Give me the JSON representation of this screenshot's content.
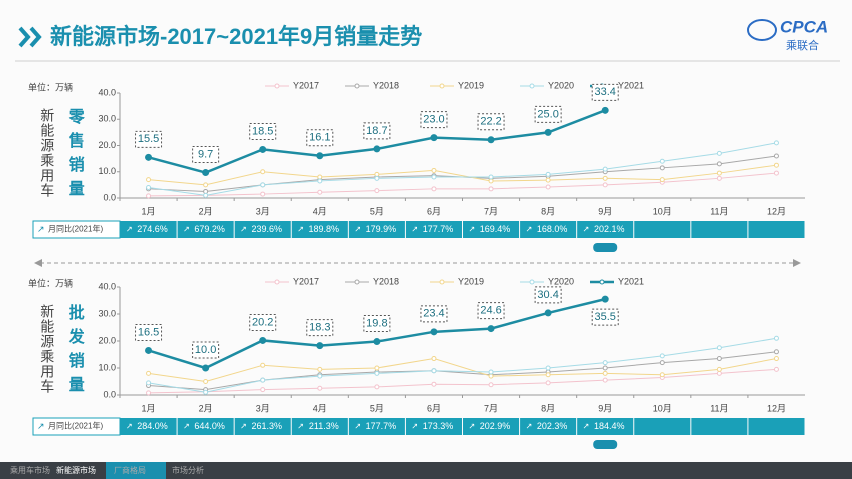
{
  "header": {
    "title": "新能源市场-2017~2021年9月销量走势",
    "logo": "CPCA",
    "logo_sub": "乘联合"
  },
  "footer": {
    "tabs": [
      "乘用车市场",
      "新能源市场",
      "厂商格局",
      "市场分析"
    ]
  },
  "chart_data": [
    {
      "type": "line",
      "unit": "单位：万辆",
      "side_title": "新能源乘用车",
      "subtitle": "零售销量",
      "categories": [
        "1月",
        "2月",
        "3月",
        "4月",
        "5月",
        "6月",
        "7月",
        "8月",
        "9月",
        "10月",
        "11月",
        "12月"
      ],
      "series": [
        {
          "name": "Y2017",
          "color": "#f3c3cd",
          "values": [
            0.8,
            1.0,
            1.5,
            2.2,
            2.8,
            3.5,
            3.5,
            4.2,
            5.0,
            6.0,
            7.5,
            9.5
          ]
        },
        {
          "name": "Y2018",
          "color": "#a8a8a8",
          "values": [
            3.5,
            2.5,
            5.0,
            7.0,
            8.0,
            8.5,
            7.5,
            8.3,
            10.0,
            11.5,
            13.0,
            16.0
          ]
        },
        {
          "name": "Y2019",
          "color": "#f2d68c",
          "values": [
            7.0,
            5.0,
            10.0,
            8.0,
            9.0,
            10.5,
            6.5,
            6.8,
            7.5,
            7.0,
            9.5,
            12.5
          ]
        },
        {
          "name": "Y2020",
          "color": "#a6dbe6",
          "values": [
            4.0,
            1.0,
            5.0,
            6.5,
            7.5,
            8.0,
            8.0,
            9.0,
            11.0,
            14.0,
            17.0,
            21.0
          ]
        },
        {
          "name": "Y2021",
          "color": "#1d8ca2",
          "values": [
            15.5,
            9.7,
            18.5,
            16.1,
            18.7,
            23.0,
            22.2,
            25.0,
            33.4,
            null,
            null,
            null
          ],
          "value_labels": [
            "15.5",
            "9.7",
            "18.5",
            "16.1",
            "18.7",
            "23.0",
            "22.2",
            "25.0",
            "33.4",
            null,
            null,
            null
          ]
        }
      ],
      "ylim": [
        0,
        40
      ],
      "yticks": [
        {
          "value": 0,
          "label": "0.0"
        },
        {
          "value": 10,
          "label": "10.0"
        },
        {
          "value": 20,
          "label": "20.0"
        },
        {
          "value": 30,
          "label": "30.0"
        },
        {
          "value": 40,
          "label": "40.0"
        }
      ],
      "yoy_label": "月同比(2021年)",
      "yoy": [
        "274.6%",
        "679.2%",
        "239.6%",
        "189.8%",
        "179.9%",
        "177.7%",
        "169.4%",
        "168.0%",
        "202.1%"
      ]
    },
    {
      "type": "line",
      "unit": "单位：万辆",
      "side_title": "新能源乘用车",
      "subtitle": "批发销量",
      "categories": [
        "1月",
        "2月",
        "3月",
        "4月",
        "5月",
        "6月",
        "7月",
        "8月",
        "9月",
        "10月",
        "11月",
        "12月"
      ],
      "series": [
        {
          "name": "Y2017",
          "color": "#f3c3cd",
          "values": [
            0.8,
            1.2,
            2.0,
            2.5,
            3.0,
            4.0,
            3.8,
            4.5,
            5.5,
            6.5,
            8.0,
            9.5
          ]
        },
        {
          "name": "Y2018",
          "color": "#a8a8a8",
          "values": [
            3.5,
            2.0,
            5.5,
            7.5,
            8.5,
            9.0,
            7.5,
            8.5,
            10.0,
            12.0,
            13.5,
            16.0
          ]
        },
        {
          "name": "Y2019",
          "color": "#f2d68c",
          "values": [
            8.0,
            5.0,
            11.0,
            9.5,
            10.0,
            13.5,
            7.0,
            7.5,
            8.0,
            7.5,
            9.5,
            13.5
          ]
        },
        {
          "name": "Y2020",
          "color": "#a6dbe6",
          "values": [
            4.5,
            1.0,
            5.5,
            7.0,
            8.0,
            9.0,
            8.5,
            10.0,
            12.0,
            14.5,
            17.5,
            21.0
          ]
        },
        {
          "name": "Y2021",
          "color": "#1d8ca2",
          "values": [
            16.5,
            10.0,
            20.2,
            18.3,
            19.8,
            23.4,
            24.6,
            30.4,
            35.5,
            null,
            null,
            null
          ],
          "value_labels": [
            "16.5",
            "10.0",
            "20.2",
            "18.3",
            "19.8",
            "23.4",
            "24.6",
            "30.4",
            "35.5",
            null,
            null,
            null
          ]
        }
      ],
      "ylim": [
        0,
        40
      ],
      "yticks": [
        {
          "value": 0,
          "label": "0.0"
        },
        {
          "value": 10,
          "label": "10.0"
        },
        {
          "value": 20,
          "label": "20.0"
        },
        {
          "value": 30,
          "label": "30.0"
        },
        {
          "value": 40,
          "label": "40.0"
        }
      ],
      "yoy_label": "月同比(2021年)",
      "yoy": [
        "284.0%",
        "644.0%",
        "261.3%",
        "211.3%",
        "177.7%",
        "173.3%",
        "202.9%",
        "202.3%",
        "184.4%"
      ]
    }
  ]
}
